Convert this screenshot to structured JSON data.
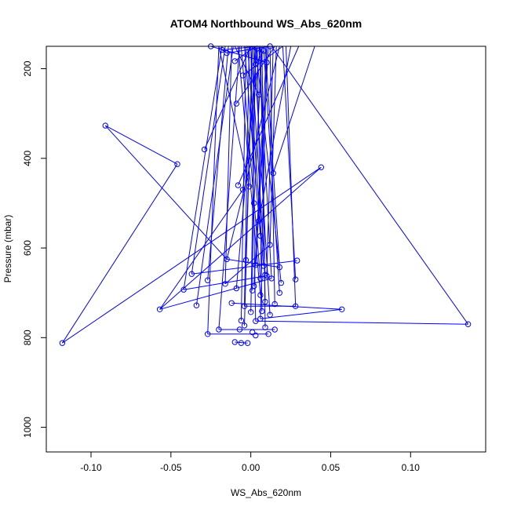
{
  "chart_data": {
    "type": "line",
    "title": "ATOM4 Northbound WS_Abs_620nm",
    "xlabel": "WS_Abs_620nm",
    "ylabel": "Pressure (mbar)",
    "xlim": [
      -0.128,
      0.147
    ],
    "ylim": [
      1055,
      150
    ],
    "y_reversed": true,
    "grid": false,
    "legend": "none",
    "color": "#0000ff",
    "marker": "open-circle",
    "x_ticks": [
      -0.1,
      -0.05,
      0.0,
      0.05,
      0.1
    ],
    "x_tick_labels": [
      "-0.10",
      "-0.05",
      "0.00",
      "0.05",
      "0.10"
    ],
    "y_ticks": [
      200,
      400,
      600,
      800,
      1000
    ],
    "y_tick_labels": [
      "200",
      "400",
      "600",
      "800",
      "1000"
    ],
    "series": [
      {
        "points": [
          [
            0.012,
            150
          ],
          [
            -0.025,
            150
          ],
          [
            0.004,
            155
          ],
          [
            -0.018,
            158
          ],
          [
            -0.015,
            165
          ],
          [
            0.008,
            160
          ],
          [
            -0.01,
            183
          ],
          [
            0.01,
            186
          ],
          [
            0.003,
            190
          ],
          [
            -0.005,
            215
          ],
          [
            0.005,
            258
          ],
          [
            -0.009,
            278
          ],
          [
            -0.091,
            327
          ],
          [
            -0.029,
            380
          ],
          [
            -0.046,
            413
          ],
          [
            0.044,
            420
          ],
          [
            0.014,
            433
          ],
          [
            -0.008,
            460
          ],
          [
            -0.001,
            463
          ],
          [
            -0.005,
            470
          ],
          [
            0.002,
            500
          ],
          [
            0.005,
            540
          ],
          [
            0.006,
            573
          ],
          [
            0.012,
            593
          ],
          [
            -0.015,
            625
          ],
          [
            -0.003,
            627
          ],
          [
            0.029,
            628
          ],
          [
            0.003,
            638
          ],
          [
            0.008,
            640
          ],
          [
            0.018,
            643
          ],
          [
            -0.037,
            658
          ],
          [
            0.009,
            660
          ],
          [
            0.01,
            662
          ],
          [
            0.006,
            668
          ],
          [
            0.013,
            668
          ],
          [
            0.028,
            670
          ],
          [
            -0.027,
            672
          ],
          [
            0.019,
            678
          ],
          [
            -0.016,
            680
          ],
          [
            0.002,
            685
          ],
          [
            -0.009,
            690
          ],
          [
            -0.042,
            693
          ],
          [
            0.001,
            695
          ],
          [
            0.018,
            700
          ],
          [
            0.006,
            705
          ],
          [
            0.009,
            720
          ],
          [
            -0.012,
            723
          ],
          [
            0.015,
            725
          ],
          [
            -0.034,
            728
          ],
          [
            -0.004,
            730
          ],
          [
            0.028,
            730
          ],
          [
            -0.057,
            737
          ],
          [
            0.057,
            737
          ],
          [
            0.007,
            741
          ],
          [
            0.0,
            743
          ],
          [
            0.012,
            749
          ],
          [
            0.006,
            758
          ],
          [
            -0.006,
            762
          ],
          [
            0.003,
            763
          ],
          [
            0.136,
            770
          ],
          [
            -0.004,
            773
          ],
          [
            0.009,
            777
          ],
          [
            -0.02,
            782
          ],
          [
            -0.007,
            782
          ],
          [
            0.015,
            782
          ],
          [
            0.001,
            788
          ],
          [
            -0.027,
            792
          ],
          [
            0.011,
            792
          ],
          [
            0.003,
            795
          ],
          [
            -0.01,
            810
          ],
          [
            -0.118,
            812
          ],
          [
            -0.006,
            812
          ],
          [
            -0.002,
            812
          ]
        ],
        "segments": [
          [
            0.004,
            150,
            -0.018,
            158
          ],
          [
            -0.018,
            158,
            -0.015,
            165
          ],
          [
            -0.015,
            165,
            0.012,
            150
          ],
          [
            0.01,
            186,
            -0.025,
            150
          ],
          [
            0.003,
            190,
            0.008,
            160
          ],
          [
            -0.01,
            183,
            0.003,
            150
          ],
          [
            -0.005,
            215,
            0.02,
            150
          ],
          [
            0.005,
            258,
            -0.01,
            150
          ],
          [
            -0.009,
            278,
            0.015,
            150
          ],
          [
            -0.091,
            327,
            -0.046,
            413
          ],
          [
            -0.091,
            327,
            -0.015,
            625
          ],
          [
            -0.046,
            413,
            -0.118,
            812
          ],
          [
            -0.118,
            812,
            0.044,
            420
          ],
          [
            0.044,
            420,
            -0.057,
            737
          ],
          [
            -0.057,
            737,
            -0.005,
            470
          ],
          [
            -0.005,
            470,
            0.006,
            150
          ],
          [
            -0.029,
            380,
            0.0,
            150
          ],
          [
            0.014,
            433,
            0.04,
            150
          ],
          [
            -0.008,
            460,
            0.03,
            150
          ],
          [
            -0.001,
            463,
            -0.02,
            150
          ],
          [
            0.002,
            500,
            0.007,
            150
          ],
          [
            0.005,
            540,
            0.025,
            150
          ],
          [
            0.006,
            573,
            -0.004,
            150
          ],
          [
            0.012,
            593,
            0.016,
            150
          ],
          [
            -0.015,
            625,
            0.018,
            150
          ],
          [
            -0.003,
            627,
            0.001,
            150
          ],
          [
            0.003,
            638,
            0.011,
            150
          ],
          [
            0.008,
            640,
            -0.002,
            150
          ],
          [
            0.018,
            643,
            0.009,
            150
          ],
          [
            0.009,
            660,
            0.0,
            150
          ],
          [
            0.01,
            662,
            0.014,
            150
          ],
          [
            0.006,
            668,
            -0.006,
            150
          ],
          [
            0.013,
            668,
            0.005,
            150
          ],
          [
            0.019,
            678,
            0.003,
            150
          ],
          [
            -0.016,
            680,
            -0.012,
            150
          ],
          [
            0.002,
            685,
            0.01,
            150
          ],
          [
            -0.009,
            690,
            0.004,
            150
          ],
          [
            0.001,
            695,
            0.002,
            150
          ],
          [
            0.018,
            700,
            0.008,
            150
          ],
          [
            0.006,
            705,
            -0.008,
            150
          ],
          [
            0.009,
            720,
            0.006,
            150
          ],
          [
            0.015,
            725,
            0.012,
            150
          ],
          [
            -0.004,
            730,
            -0.001,
            150
          ],
          [
            0.0,
            743,
            0.003,
            150
          ],
          [
            0.012,
            749,
            0.002,
            150
          ],
          [
            0.006,
            758,
            0.01,
            150
          ],
          [
            0.003,
            763,
            0.0,
            150
          ],
          [
            -0.006,
            762,
            -0.003,
            150
          ],
          [
            0.007,
            741,
            0.004,
            150
          ],
          [
            -0.004,
            773,
            0.001,
            150
          ],
          [
            0.009,
            777,
            0.007,
            150
          ],
          [
            -0.037,
            658,
            -0.016,
            150
          ],
          [
            -0.027,
            672,
            -0.014,
            150
          ],
          [
            -0.042,
            693,
            -0.018,
            150
          ],
          [
            -0.034,
            728,
            -0.011,
            150
          ],
          [
            0.028,
            670,
            0.02,
            150
          ],
          [
            0.028,
            730,
            0.022,
            150
          ],
          [
            -0.02,
            782,
            -0.007,
            150
          ],
          [
            -0.027,
            792,
            -0.02,
            150
          ],
          [
            0.136,
            770,
            0.013,
            150
          ],
          [
            0.029,
            628,
            -0.037,
            658
          ],
          [
            -0.042,
            693,
            0.01,
            662
          ],
          [
            -0.057,
            737,
            0.013,
            668
          ],
          [
            0.057,
            737,
            -0.012,
            723
          ],
          [
            0.057,
            737,
            0.006,
            758
          ],
          [
            0.028,
            730,
            -0.004,
            730
          ],
          [
            0.136,
            770,
            0.003,
            763
          ],
          [
            -0.02,
            782,
            0.015,
            782
          ],
          [
            0.015,
            782,
            -0.007,
            782
          ],
          [
            -0.027,
            792,
            0.011,
            792
          ],
          [
            -0.01,
            810,
            -0.002,
            812
          ],
          [
            0.018,
            643,
            -0.015,
            625
          ],
          [
            -0.016,
            680,
            0.012,
            593
          ]
        ]
      }
    ]
  }
}
